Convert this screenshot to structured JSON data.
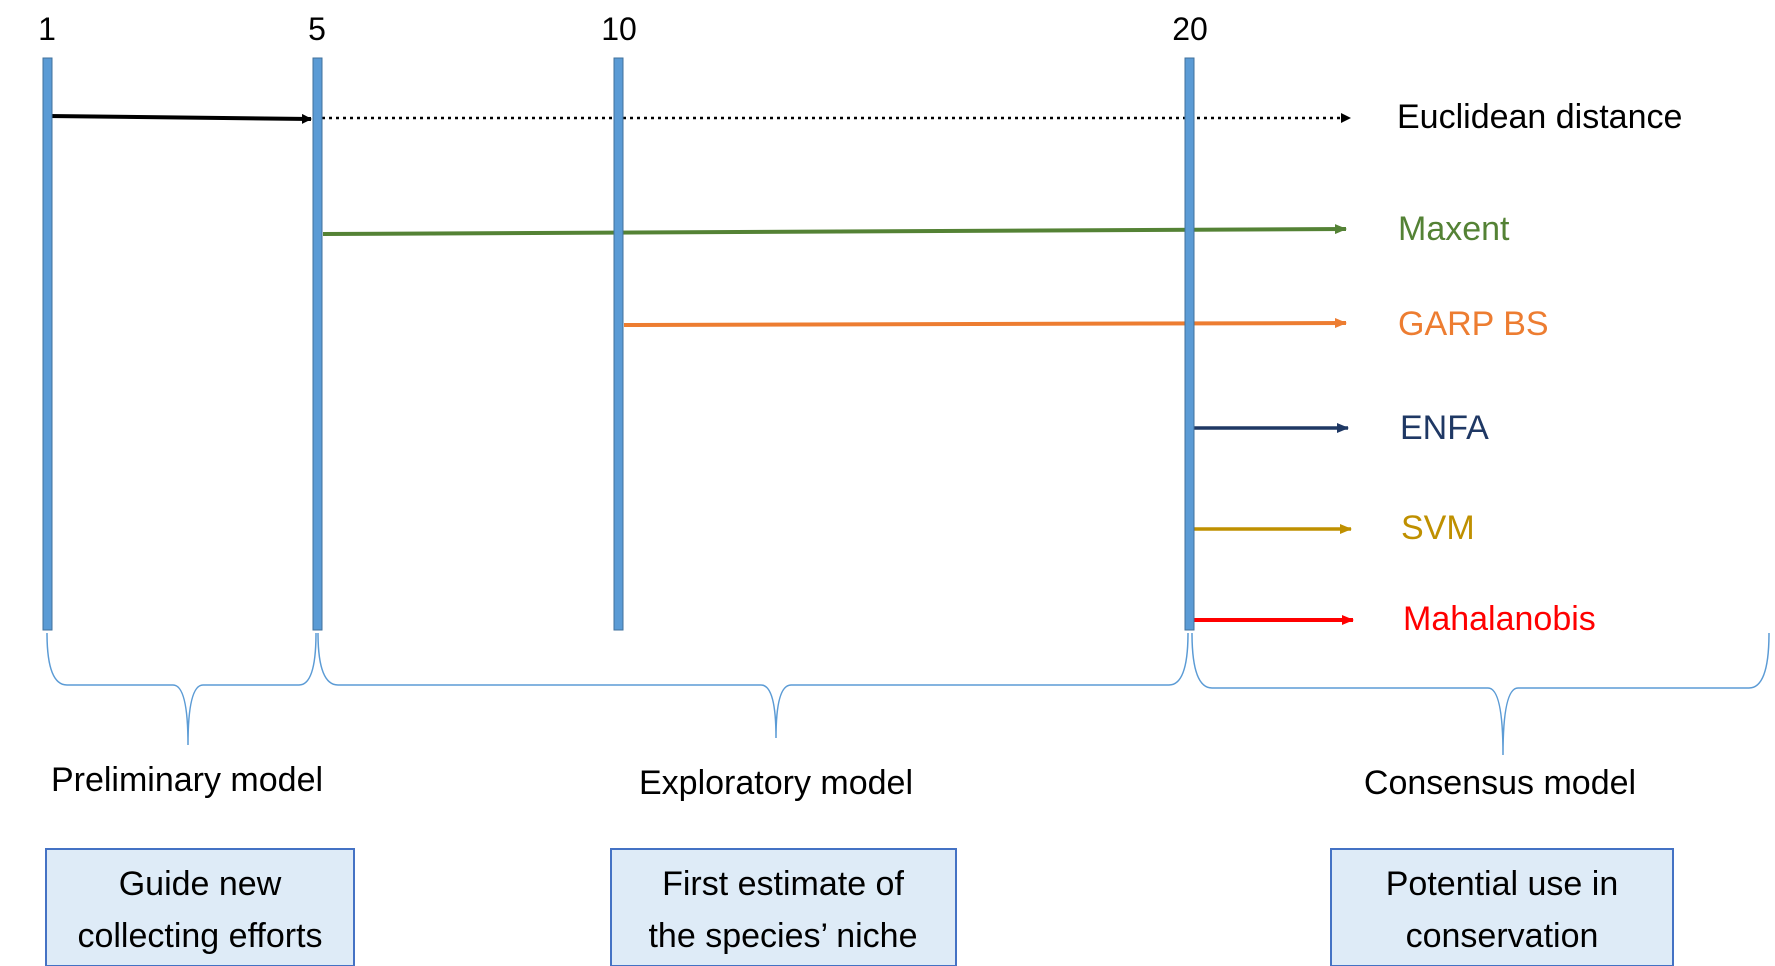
{
  "milestones": [
    {
      "label": "1"
    },
    {
      "label": "5"
    },
    {
      "label": "10"
    },
    {
      "label": "20"
    }
  ],
  "methods": [
    {
      "label": "Euclidean distance",
      "color": "#000000",
      "style": "dotted"
    },
    {
      "label": "Maxent",
      "color": "#548235",
      "style": "solid"
    },
    {
      "label": "GARP BS",
      "color": "#ED7D31",
      "style": "solid"
    },
    {
      "label": "ENFA",
      "color": "#1F3864",
      "style": "solid"
    },
    {
      "label": "SVM",
      "color": "#BF9000",
      "style": "solid"
    },
    {
      "label": "Mahalanobis",
      "color": "#FF0000",
      "style": "solid"
    }
  ],
  "stages": [
    {
      "label": "Preliminary model",
      "description": [
        "Guide  new",
        "collecting efforts"
      ]
    },
    {
      "label": "Exploratory model",
      "description": [
        "First estimate of",
        "the species’ niche"
      ]
    },
    {
      "label": "Consensus model",
      "description": [
        "Potential use in",
        "conservation"
      ]
    }
  ],
  "colors": {
    "milestone_bar": "#5B9BD5",
    "milestone_bar_border": "#41719C",
    "brace": "#5B9BD5",
    "box_fill": "#DEEBF7",
    "box_border": "#4472C4",
    "text": "#000000"
  }
}
